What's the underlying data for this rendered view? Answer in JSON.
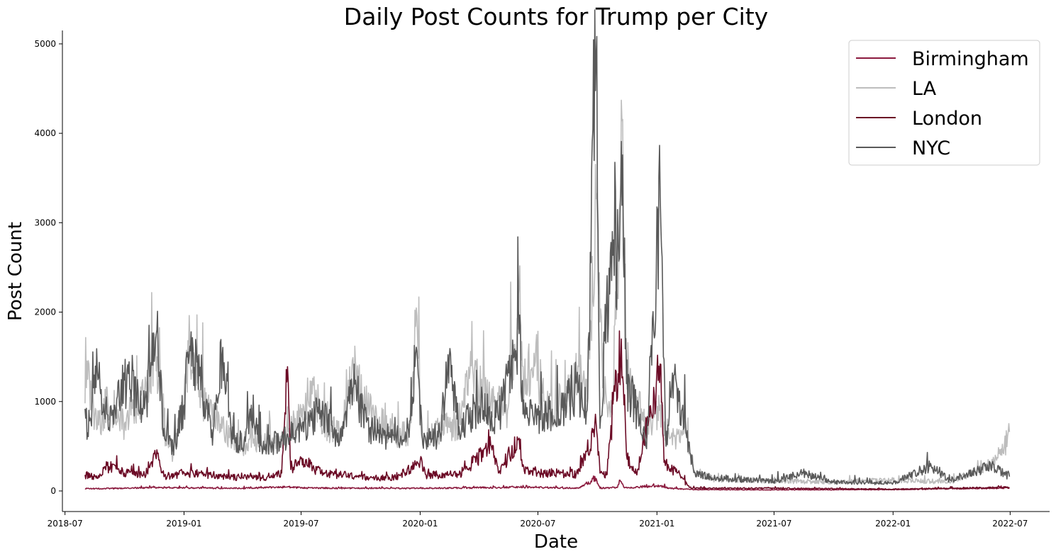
{
  "chart_data": {
    "type": "line",
    "title": "Daily Post Counts for Trump per City",
    "xlabel": "Date",
    "ylabel": "Post Count",
    "xlim": [
      "2018-06-27",
      "2022-08-31"
    ],
    "ylim": [
      -230,
      5150
    ],
    "x_ticks": [
      "2018-07",
      "2019-01",
      "2019-07",
      "2020-01",
      "2020-07",
      "2021-01",
      "2021-07",
      "2022-01",
      "2022-07"
    ],
    "y_ticks": [
      0,
      1000,
      2000,
      3000,
      4000,
      5000
    ],
    "grid": false,
    "legend_position": "top-right",
    "date_range": [
      "2018-08-01",
      "2022-06-30"
    ],
    "series": [
      {
        "name": "Birmingham",
        "color": "#8b1a3e",
        "points": [
          [
            "2018-08-01",
            25
          ],
          [
            "2018-10-01",
            30
          ],
          [
            "2018-11-20",
            40
          ],
          [
            "2019-01-01",
            35
          ],
          [
            "2019-04-01",
            30
          ],
          [
            "2019-06-10",
            45
          ],
          [
            "2019-07-01",
            35
          ],
          [
            "2019-10-01",
            30
          ],
          [
            "2020-01-01",
            30
          ],
          [
            "2020-03-15",
            35
          ],
          [
            "2020-05-01",
            40
          ],
          [
            "2020-06-01",
            45
          ],
          [
            "2020-07-01",
            40
          ],
          [
            "2020-09-01",
            30
          ],
          [
            "2020-09-29",
            140
          ],
          [
            "2020-10-05",
            30
          ],
          [
            "2020-11-01",
            40
          ],
          [
            "2020-11-05",
            120
          ],
          [
            "2020-11-12",
            35
          ],
          [
            "2021-01-06",
            60
          ],
          [
            "2021-01-20",
            30
          ],
          [
            "2021-03-01",
            15
          ],
          [
            "2021-07-01",
            12
          ],
          [
            "2022-01-01",
            15
          ],
          [
            "2022-06-30",
            35
          ]
        ]
      },
      {
        "name": "LA",
        "color": "#bdbdbd",
        "points": [
          [
            "2018-08-01",
            980
          ],
          [
            "2018-08-05",
            1250
          ],
          [
            "2018-08-20",
            700
          ],
          [
            "2018-09-05",
            1000
          ],
          [
            "2018-10-01",
            750
          ],
          [
            "2018-11-01",
            1080
          ],
          [
            "2018-11-20",
            1500
          ],
          [
            "2018-12-01",
            700
          ],
          [
            "2018-12-15",
            420
          ],
          [
            "2019-01-01",
            1010
          ],
          [
            "2019-01-10",
            1670
          ],
          [
            "2019-02-01",
            1000
          ],
          [
            "2019-03-01",
            700
          ],
          [
            "2019-04-01",
            520
          ],
          [
            "2019-05-01",
            520
          ],
          [
            "2019-06-01",
            560
          ],
          [
            "2019-07-01",
            830
          ],
          [
            "2019-07-15",
            1230
          ],
          [
            "2019-08-01",
            780
          ],
          [
            "2019-09-01",
            630
          ],
          [
            "2019-09-20",
            1340
          ],
          [
            "2019-10-15",
            900
          ],
          [
            "2019-11-15",
            650
          ],
          [
            "2019-12-15",
            650
          ],
          [
            "2019-12-25",
            1840
          ],
          [
            "2020-01-05",
            580
          ],
          [
            "2020-02-01",
            680
          ],
          [
            "2020-03-01",
            760
          ],
          [
            "2020-03-20",
            1400
          ],
          [
            "2020-04-15",
            1000
          ],
          [
            "2020-05-15",
            900
          ],
          [
            "2020-06-02",
            2280
          ],
          [
            "2020-06-10",
            1200
          ],
          [
            "2020-06-25",
            1540
          ],
          [
            "2020-07-15",
            900
          ],
          [
            "2020-08-15",
            1000
          ],
          [
            "2020-09-01",
            1400
          ],
          [
            "2020-09-15",
            1000
          ],
          [
            "2020-09-29",
            3270
          ],
          [
            "2020-10-05",
            1890
          ],
          [
            "2020-10-15",
            1000
          ],
          [
            "2020-10-25",
            1100
          ],
          [
            "2020-11-04",
            3160
          ],
          [
            "2020-11-07",
            4370
          ],
          [
            "2020-11-15",
            1400
          ],
          [
            "2020-12-01",
            1000
          ],
          [
            "2020-12-15",
            700
          ],
          [
            "2021-01-06",
            960
          ],
          [
            "2021-01-20",
            600
          ],
          [
            "2021-02-15",
            650
          ],
          [
            "2021-03-01",
            200
          ],
          [
            "2021-04-01",
            130
          ],
          [
            "2021-07-01",
            110
          ],
          [
            "2021-10-01",
            100
          ],
          [
            "2022-01-01",
            120
          ],
          [
            "2022-04-01",
            100
          ],
          [
            "2022-06-01",
            300
          ],
          [
            "2022-06-20",
            430
          ],
          [
            "2022-06-30",
            660
          ]
        ]
      },
      {
        "name": "London",
        "color": "#6b0a25",
        "points": [
          [
            "2018-08-01",
            180
          ],
          [
            "2018-08-20",
            140
          ],
          [
            "2018-09-01",
            270
          ],
          [
            "2018-10-01",
            200
          ],
          [
            "2018-11-01",
            180
          ],
          [
            "2018-11-20",
            460
          ],
          [
            "2018-12-01",
            160
          ],
          [
            "2019-01-01",
            200
          ],
          [
            "2019-02-01",
            190
          ],
          [
            "2019-03-01",
            160
          ],
          [
            "2019-04-01",
            150
          ],
          [
            "2019-05-01",
            140
          ],
          [
            "2019-06-01",
            200
          ],
          [
            "2019-06-10",
            1390
          ],
          [
            "2019-06-15",
            240
          ],
          [
            "2019-07-01",
            360
          ],
          [
            "2019-08-01",
            200
          ],
          [
            "2019-09-01",
            180
          ],
          [
            "2019-10-01",
            160
          ],
          [
            "2019-11-01",
            140
          ],
          [
            "2019-12-01",
            170
          ],
          [
            "2020-01-01",
            330
          ],
          [
            "2020-01-10",
            180
          ],
          [
            "2020-03-01",
            180
          ],
          [
            "2020-04-20",
            500
          ],
          [
            "2020-05-01",
            200
          ],
          [
            "2020-06-02",
            590
          ],
          [
            "2020-06-10",
            220
          ],
          [
            "2020-07-01",
            200
          ],
          [
            "2020-08-01",
            200
          ],
          [
            "2020-09-01",
            190
          ],
          [
            "2020-09-29",
            750
          ],
          [
            "2020-10-05",
            200
          ],
          [
            "2020-10-15",
            180
          ],
          [
            "2020-11-07",
            1700
          ],
          [
            "2020-11-15",
            400
          ],
          [
            "2020-12-01",
            180
          ],
          [
            "2021-01-06",
            1420
          ],
          [
            "2021-01-12",
            320
          ],
          [
            "2021-02-01",
            200
          ],
          [
            "2021-02-20",
            40
          ],
          [
            "2021-03-01",
            30
          ],
          [
            "2021-07-01",
            30
          ],
          [
            "2022-01-01",
            20
          ],
          [
            "2022-06-30",
            40
          ]
        ]
      },
      {
        "name": "NYC",
        "color": "#595959",
        "points": [
          [
            "2018-08-01",
            920
          ],
          [
            "2018-08-05",
            650
          ],
          [
            "2018-08-20",
            1340
          ],
          [
            "2018-09-05",
            850
          ],
          [
            "2018-10-01",
            1240
          ],
          [
            "2018-11-01",
            920
          ],
          [
            "2018-11-20",
            1800
          ],
          [
            "2018-12-01",
            700
          ],
          [
            "2018-12-15",
            450
          ],
          [
            "2019-01-01",
            960
          ],
          [
            "2019-01-10",
            1620
          ],
          [
            "2019-02-01",
            1000
          ],
          [
            "2019-02-15",
            650
          ],
          [
            "2019-03-01",
            1520
          ],
          [
            "2019-03-15",
            620
          ],
          [
            "2019-04-01",
            480
          ],
          [
            "2019-04-15",
            960
          ],
          [
            "2019-05-01",
            500
          ],
          [
            "2019-06-01",
            560
          ],
          [
            "2019-07-01",
            700
          ],
          [
            "2019-08-01",
            900
          ],
          [
            "2019-09-01",
            560
          ],
          [
            "2019-09-20",
            1170
          ],
          [
            "2019-10-15",
            700
          ],
          [
            "2019-11-15",
            600
          ],
          [
            "2019-12-15",
            600
          ],
          [
            "2019-12-25",
            1540
          ],
          [
            "2020-01-05",
            520
          ],
          [
            "2020-02-01",
            640
          ],
          [
            "2020-02-15",
            1500
          ],
          [
            "2020-03-01",
            720
          ],
          [
            "2020-04-01",
            950
          ],
          [
            "2020-05-01",
            800
          ],
          [
            "2020-06-02",
            1760
          ],
          [
            "2020-06-10",
            850
          ],
          [
            "2020-07-01",
            850
          ],
          [
            "2020-08-01",
            900
          ],
          [
            "2020-09-01",
            1100
          ],
          [
            "2020-09-15",
            900
          ],
          [
            "2020-09-29",
            4890
          ],
          [
            "2020-10-05",
            700
          ],
          [
            "2020-10-22",
            2780
          ],
          [
            "2020-11-04",
            2600
          ],
          [
            "2020-11-07",
            3910
          ],
          [
            "2020-11-15",
            1200
          ],
          [
            "2020-12-01",
            900
          ],
          [
            "2020-12-15",
            500
          ],
          [
            "2021-01-06",
            3300
          ],
          [
            "2021-01-15",
            500
          ],
          [
            "2021-01-25",
            1320
          ],
          [
            "2021-02-15",
            650
          ],
          [
            "2021-03-01",
            200
          ],
          [
            "2021-04-01",
            140
          ],
          [
            "2021-07-01",
            110
          ],
          [
            "2021-08-15",
            200
          ],
          [
            "2021-10-01",
            100
          ],
          [
            "2022-01-01",
            90
          ],
          [
            "2022-03-01",
            280
          ],
          [
            "2022-04-01",
            110
          ],
          [
            "2022-06-01",
            280
          ],
          [
            "2022-06-30",
            160
          ]
        ]
      }
    ]
  }
}
